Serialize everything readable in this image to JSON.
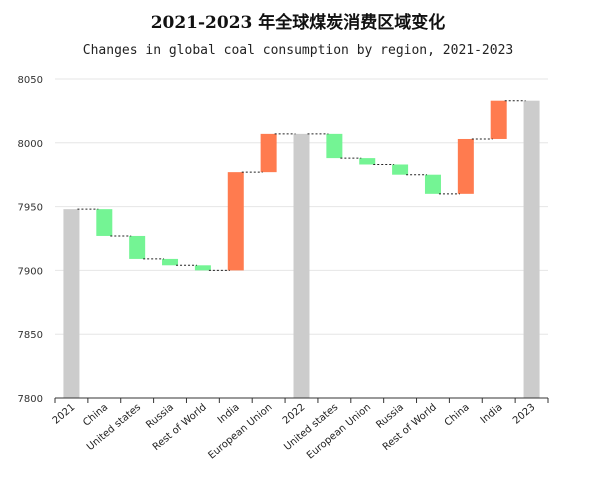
{
  "chart_data": {
    "type": "bar",
    "subtype": "waterfall",
    "title": "2021-2023 年全球煤炭消费区域变化",
    "subtitle": "Changes in global coal consumption by region, 2021-2023",
    "xlabel": "",
    "ylabel": "",
    "ylim": [
      7800,
      8050
    ],
    "yticks": [
      7800,
      7850,
      7900,
      7950,
      8000,
      8050
    ],
    "grid": true,
    "colors": {
      "total": "#cccccc",
      "decrease": "#74f494",
      "increase": "#ff7b4f",
      "connector": "#222222",
      "gridline": "#e6e6e6",
      "axis": "#333333"
    },
    "categories": [
      "2021",
      "China",
      "United states",
      "Russia",
      "Rest of World",
      "India",
      "European Union",
      "2022",
      "United states",
      "European Union",
      "Russia",
      "Rest of World",
      "China",
      "India",
      "2023"
    ],
    "bars": [
      {
        "label": "2021",
        "kind": "total",
        "start": 7800,
        "end": 7948
      },
      {
        "label": "China",
        "kind": "decrease",
        "start": 7948,
        "end": 7927
      },
      {
        "label": "United states",
        "kind": "decrease",
        "start": 7927,
        "end": 7909
      },
      {
        "label": "Russia",
        "kind": "decrease",
        "start": 7909,
        "end": 7904
      },
      {
        "label": "Rest of World",
        "kind": "decrease",
        "start": 7904,
        "end": 7900
      },
      {
        "label": "India",
        "kind": "increase",
        "start": 7900,
        "end": 7977
      },
      {
        "label": "European Union",
        "kind": "increase",
        "start": 7977,
        "end": 8007
      },
      {
        "label": "2022",
        "kind": "total",
        "start": 7800,
        "end": 8007
      },
      {
        "label": "United states",
        "kind": "decrease",
        "start": 8007,
        "end": 7988
      },
      {
        "label": "European Union",
        "kind": "decrease",
        "start": 7988,
        "end": 7983
      },
      {
        "label": "Russia",
        "kind": "decrease",
        "start": 7983,
        "end": 7975
      },
      {
        "label": "Rest of World",
        "kind": "decrease",
        "start": 7975,
        "end": 7960
      },
      {
        "label": "China",
        "kind": "increase",
        "start": 7960,
        "end": 8003
      },
      {
        "label": "India",
        "kind": "increase",
        "start": 8003,
        "end": 8033
      },
      {
        "label": "2023",
        "kind": "total",
        "start": 7800,
        "end": 8033
      }
    ]
  }
}
